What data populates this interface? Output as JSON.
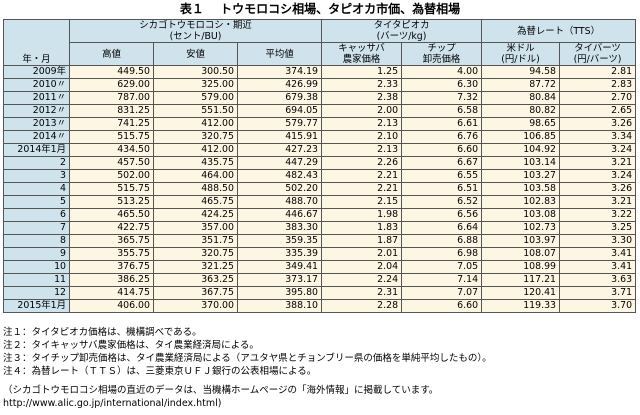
{
  "title": {
    "label": "表１",
    "text": "トウモロコシ相場、タピオカ市価、為替相場"
  },
  "headers": {
    "year_month": "年・月",
    "chicago": "シカゴトウモロコシ・期近",
    "chicago_unit": "(セント/BU)",
    "chicago_high": "高値",
    "chicago_low": "安値",
    "chicago_avg": "平均値",
    "tapioca": "タイタピオカ",
    "tapioca_unit": "(バーツ/kg)",
    "tapioca_farm_1": "キャッサバ",
    "tapioca_farm_2": "農家価格",
    "tapioca_chip_1": "チップ",
    "tapioca_chip_2": "卸売価格",
    "fx": "為替レート（TTS）",
    "fx_usd_1": "米ドル",
    "fx_usd_2": "(円/ドル)",
    "fx_thb_1": "タイバーツ",
    "fx_thb_2": "(円/バーツ)"
  },
  "rows": [
    {
      "label": "2009年",
      "high": "449.50",
      "low": "300.50",
      "avg": "374.19",
      "farm": "1.25",
      "chip": "4.00",
      "usd": "94.58",
      "thb": "2.81"
    },
    {
      "label": "2010〃",
      "high": "629.00",
      "low": "325.00",
      "avg": "426.99",
      "farm": "2.33",
      "chip": "6.30",
      "usd": "87.72",
      "thb": "2.83"
    },
    {
      "label": "2011〃",
      "high": "787.00",
      "low": "579.00",
      "avg": "679.38",
      "farm": "2.38",
      "chip": "7.32",
      "usd": "80.84",
      "thb": "2.70"
    },
    {
      "label": "2012〃",
      "high": "831.25",
      "low": "551.50",
      "avg": "694.05",
      "farm": "2.00",
      "chip": "6.58",
      "usd": "80.82",
      "thb": "2.65"
    },
    {
      "label": "2013〃",
      "high": "741.25",
      "low": "412.00",
      "avg": "579.77",
      "farm": "2.13",
      "chip": "6.61",
      "usd": "98.65",
      "thb": "3.26"
    },
    {
      "label": "2014〃",
      "high": "515.75",
      "low": "320.75",
      "avg": "415.91",
      "farm": "2.10",
      "chip": "6.76",
      "usd": "106.85",
      "thb": "3.34"
    },
    {
      "label": "2014年1月",
      "high": "434.50",
      "low": "412.00",
      "avg": "427.23",
      "farm": "2.13",
      "chip": "6.60",
      "usd": "104.92",
      "thb": "3.24"
    },
    {
      "label": "2",
      "high": "457.50",
      "low": "435.75",
      "avg": "447.29",
      "farm": "2.26",
      "chip": "6.67",
      "usd": "103.14",
      "thb": "3.21"
    },
    {
      "label": "3",
      "high": "502.00",
      "low": "464.00",
      "avg": "482.43",
      "farm": "2.21",
      "chip": "6.55",
      "usd": "103.27",
      "thb": "3.24"
    },
    {
      "label": "4",
      "high": "515.75",
      "low": "488.50",
      "avg": "502.20",
      "farm": "2.21",
      "chip": "6.51",
      "usd": "103.58",
      "thb": "3.26"
    },
    {
      "label": "5",
      "high": "513.25",
      "low": "465.75",
      "avg": "488.70",
      "farm": "2.15",
      "chip": "6.52",
      "usd": "102.83",
      "thb": "3.21"
    },
    {
      "label": "6",
      "high": "465.50",
      "low": "424.25",
      "avg": "446.67",
      "farm": "1.98",
      "chip": "6.56",
      "usd": "103.08",
      "thb": "3.22"
    },
    {
      "label": "7",
      "high": "422.75",
      "low": "357.00",
      "avg": "383.30",
      "farm": "1.83",
      "chip": "6.64",
      "usd": "102.73",
      "thb": "3.25"
    },
    {
      "label": "8",
      "high": "365.75",
      "low": "351.75",
      "avg": "359.35",
      "farm": "1.87",
      "chip": "6.88",
      "usd": "103.97",
      "thb": "3.30"
    },
    {
      "label": "9",
      "high": "355.75",
      "low": "320.75",
      "avg": "335.39",
      "farm": "2.01",
      "chip": "6.98",
      "usd": "108.07",
      "thb": "3.41"
    },
    {
      "label": "10",
      "high": "376.75",
      "low": "321.25",
      "avg": "349.41",
      "farm": "2.04",
      "chip": "7.05",
      "usd": "108.99",
      "thb": "3.41"
    },
    {
      "label": "11",
      "high": "386.25",
      "low": "363.25",
      "avg": "373.17",
      "farm": "2.24",
      "chip": "7.14",
      "usd": "117.21",
      "thb": "3.63"
    },
    {
      "label": "12",
      "high": "414.75",
      "low": "367.75",
      "avg": "395.80",
      "farm": "2.31",
      "chip": "7.07",
      "usd": "120.41",
      "thb": "3.71"
    },
    {
      "label": "2015年1月",
      "high": "406.00",
      "low": "370.00",
      "avg": "388.10",
      "farm": "2.28",
      "chip": "6.60",
      "usd": "119.33",
      "thb": "3.70"
    }
  ],
  "notes": [
    "注１：タイタピオカ価格は、機構調べである。",
    "注２：タイキャッサバ農家価格は、タイ農業経済局による。",
    "注３：タイチップ卸売価格は、タイ農業経済局による（アユタヤ県とチョンブリー県の価格を単純平均したもの）。",
    "注４：為替レート（ＴＴＳ）は、三菱東京ＵＦＪ銀行の公表相場による。"
  ],
  "footer": [
    "（シカゴトウモロコシ相場の直近のデータは、当機構ホームページの「海外情報」に掲載しています。",
    "http://www.alic.go.jp/international/index.html)"
  ]
}
